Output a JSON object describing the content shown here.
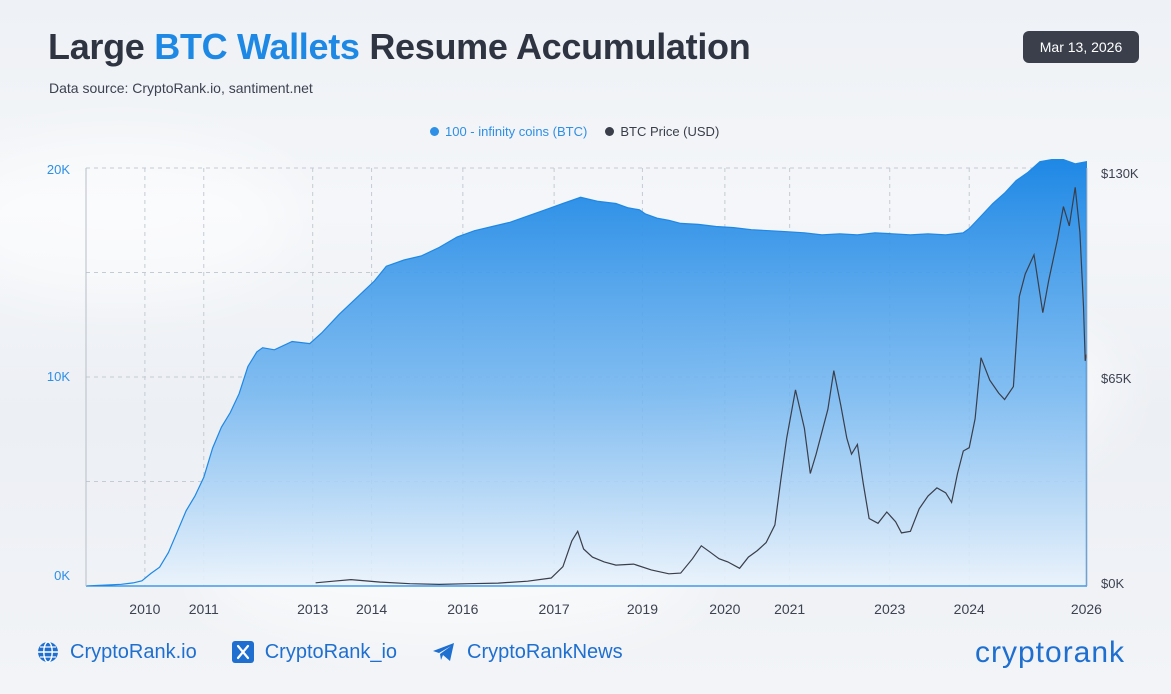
{
  "header": {
    "title_part1": "Large ",
    "title_accent": "BTC Wallets",
    "title_part2": " Resume Accumulation",
    "subtitle": "Data source: CryptoRank.io, santiment.net",
    "date": "Mar 13, 2026"
  },
  "footer": {
    "website": "CryptoRank.io",
    "x_handle": "CryptoRank_io",
    "telegram": "CryptoRankNews",
    "brand": "cryptorank",
    "icons": [
      "globe-icon",
      "x-logo-icon",
      "telegram-icon"
    ]
  },
  "colors": {
    "accent": "#1e88e5",
    "price_line": "#3a3e4a",
    "area_top": "#1e88e5",
    "area_bottom": "#eaf3fc"
  },
  "chart_data": {
    "type": "area",
    "legend": [
      "100 - infinity coins (BTC)",
      "BTC Price (USD)"
    ],
    "legend_position": "top-center",
    "x_ticks": [
      "2010",
      "2011",
      "2013",
      "2014",
      "2016",
      "2017",
      "2019",
      "2020",
      "2021",
      "2023",
      "2024",
      "2026"
    ],
    "y_left": {
      "ticks": [
        "0K",
        "10K",
        "20K"
      ],
      "range": [
        0,
        20000
      ]
    },
    "y_right": {
      "ticks": [
        "$0K",
        "$65K",
        "$130K"
      ],
      "range": [
        0,
        130000
      ]
    },
    "grid": true,
    "series": [
      {
        "name": "100 - infinity coins (BTC)",
        "axis": "left",
        "points": [
          [
            2009.0,
            0
          ],
          [
            2009.6,
            80
          ],
          [
            2009.8,
            150
          ],
          [
            2009.95,
            250
          ],
          [
            2010.1,
            600
          ],
          [
            2010.25,
            900
          ],
          [
            2010.4,
            1600
          ],
          [
            2010.55,
            2600
          ],
          [
            2010.7,
            3600
          ],
          [
            2010.85,
            4300
          ],
          [
            2011.0,
            5200
          ],
          [
            2011.15,
            6600
          ],
          [
            2011.3,
            7600
          ],
          [
            2011.45,
            8300
          ],
          [
            2011.6,
            9200
          ],
          [
            2011.75,
            10500
          ],
          [
            2011.9,
            11200
          ],
          [
            2012.0,
            11400
          ],
          [
            2012.2,
            11300
          ],
          [
            2012.5,
            11700
          ],
          [
            2012.8,
            11600
          ],
          [
            2013.0,
            12100
          ],
          [
            2013.3,
            13000
          ],
          [
            2013.6,
            13800
          ],
          [
            2013.9,
            14600
          ],
          [
            2014.1,
            15300
          ],
          [
            2014.4,
            15600
          ],
          [
            2014.7,
            15800
          ],
          [
            2015.0,
            16200
          ],
          [
            2015.3,
            16700
          ],
          [
            2015.6,
            17000
          ],
          [
            2015.9,
            17200
          ],
          [
            2016.2,
            17400
          ],
          [
            2016.5,
            17700
          ],
          [
            2016.8,
            18000
          ],
          [
            2017.1,
            18300
          ],
          [
            2017.4,
            18600
          ],
          [
            2017.7,
            18400
          ],
          [
            2018.0,
            18300
          ],
          [
            2018.2,
            18100
          ],
          [
            2018.4,
            18000
          ],
          [
            2018.5,
            17800
          ],
          [
            2018.7,
            17600
          ],
          [
            2018.9,
            17500
          ],
          [
            2019.1,
            17350
          ],
          [
            2019.4,
            17300
          ],
          [
            2019.7,
            17200
          ],
          [
            2020.0,
            17150
          ],
          [
            2020.3,
            17050
          ],
          [
            2020.6,
            17000
          ],
          [
            2020.9,
            16950
          ],
          [
            2021.2,
            16900
          ],
          [
            2021.5,
            16800
          ],
          [
            2021.8,
            16850
          ],
          [
            2022.1,
            16800
          ],
          [
            2022.4,
            16900
          ],
          [
            2022.7,
            16850
          ],
          [
            2023.0,
            16800
          ],
          [
            2023.3,
            16850
          ],
          [
            2023.6,
            16800
          ],
          [
            2023.9,
            16900
          ],
          [
            2024.0,
            17100
          ],
          [
            2024.2,
            17700
          ],
          [
            2024.4,
            18300
          ],
          [
            2024.6,
            18800
          ],
          [
            2024.8,
            19400
          ],
          [
            2025.0,
            19800
          ],
          [
            2025.2,
            20300
          ],
          [
            2025.4,
            20400
          ],
          [
            2025.6,
            20400
          ],
          [
            2025.8,
            20200
          ],
          [
            2025.99,
            20300
          ]
        ]
      },
      {
        "name": "BTC Price (USD)",
        "axis": "right",
        "points": [
          [
            2012.9,
            1000
          ],
          [
            2013.2,
            1500
          ],
          [
            2013.5,
            2000
          ],
          [
            2014.0,
            1200
          ],
          [
            2014.5,
            700
          ],
          [
            2015.0,
            500
          ],
          [
            2015.5,
            700
          ],
          [
            2016.0,
            900
          ],
          [
            2016.5,
            1500
          ],
          [
            2016.9,
            2500
          ],
          [
            2017.1,
            6000
          ],
          [
            2017.25,
            14000
          ],
          [
            2017.35,
            17000
          ],
          [
            2017.45,
            11500
          ],
          [
            2017.6,
            9000
          ],
          [
            2017.8,
            7500
          ],
          [
            2018.0,
            6500
          ],
          [
            2018.3,
            6800
          ],
          [
            2018.6,
            5000
          ],
          [
            2018.9,
            3800
          ],
          [
            2019.1,
            4000
          ],
          [
            2019.3,
            8500
          ],
          [
            2019.45,
            12500
          ],
          [
            2019.6,
            10500
          ],
          [
            2019.75,
            8500
          ],
          [
            2019.9,
            7500
          ],
          [
            2020.1,
            5500
          ],
          [
            2020.25,
            9000
          ],
          [
            2020.4,
            11000
          ],
          [
            2020.55,
            13500
          ],
          [
            2020.7,
            19000
          ],
          [
            2020.8,
            33000
          ],
          [
            2020.9,
            46000
          ],
          [
            2021.05,
            61000
          ],
          [
            2021.2,
            49000
          ],
          [
            2021.3,
            35000
          ],
          [
            2021.4,
            41000
          ],
          [
            2021.5,
            48000
          ],
          [
            2021.6,
            55000
          ],
          [
            2021.7,
            67000
          ],
          [
            2021.82,
            56000
          ],
          [
            2021.92,
            46000
          ],
          [
            2022.0,
            41000
          ],
          [
            2022.1,
            44000
          ],
          [
            2022.2,
            32000
          ],
          [
            2022.3,
            21000
          ],
          [
            2022.45,
            19500
          ],
          [
            2022.6,
            23000
          ],
          [
            2022.75,
            20000
          ],
          [
            2022.85,
            16500
          ],
          [
            2023.0,
            17000
          ],
          [
            2023.15,
            24000
          ],
          [
            2023.3,
            28000
          ],
          [
            2023.45,
            30500
          ],
          [
            2023.6,
            29000
          ],
          [
            2023.7,
            26000
          ],
          [
            2023.8,
            35000
          ],
          [
            2023.9,
            42000
          ],
          [
            2024.0,
            43000
          ],
          [
            2024.1,
            52000
          ],
          [
            2024.2,
            71000
          ],
          [
            2024.35,
            64000
          ],
          [
            2024.5,
            60000
          ],
          [
            2024.6,
            58000
          ],
          [
            2024.75,
            62000
          ],
          [
            2024.85,
            90000
          ],
          [
            2024.95,
            97000
          ],
          [
            2025.1,
            103000
          ],
          [
            2025.25,
            85000
          ],
          [
            2025.35,
            95000
          ],
          [
            2025.5,
            108000
          ],
          [
            2025.6,
            118000
          ],
          [
            2025.7,
            112000
          ],
          [
            2025.8,
            124000
          ],
          [
            2025.88,
            110000
          ],
          [
            2025.94,
            87000
          ],
          [
            2025.97,
            70000
          ],
          [
            2025.99,
            72000
          ]
        ]
      }
    ]
  }
}
